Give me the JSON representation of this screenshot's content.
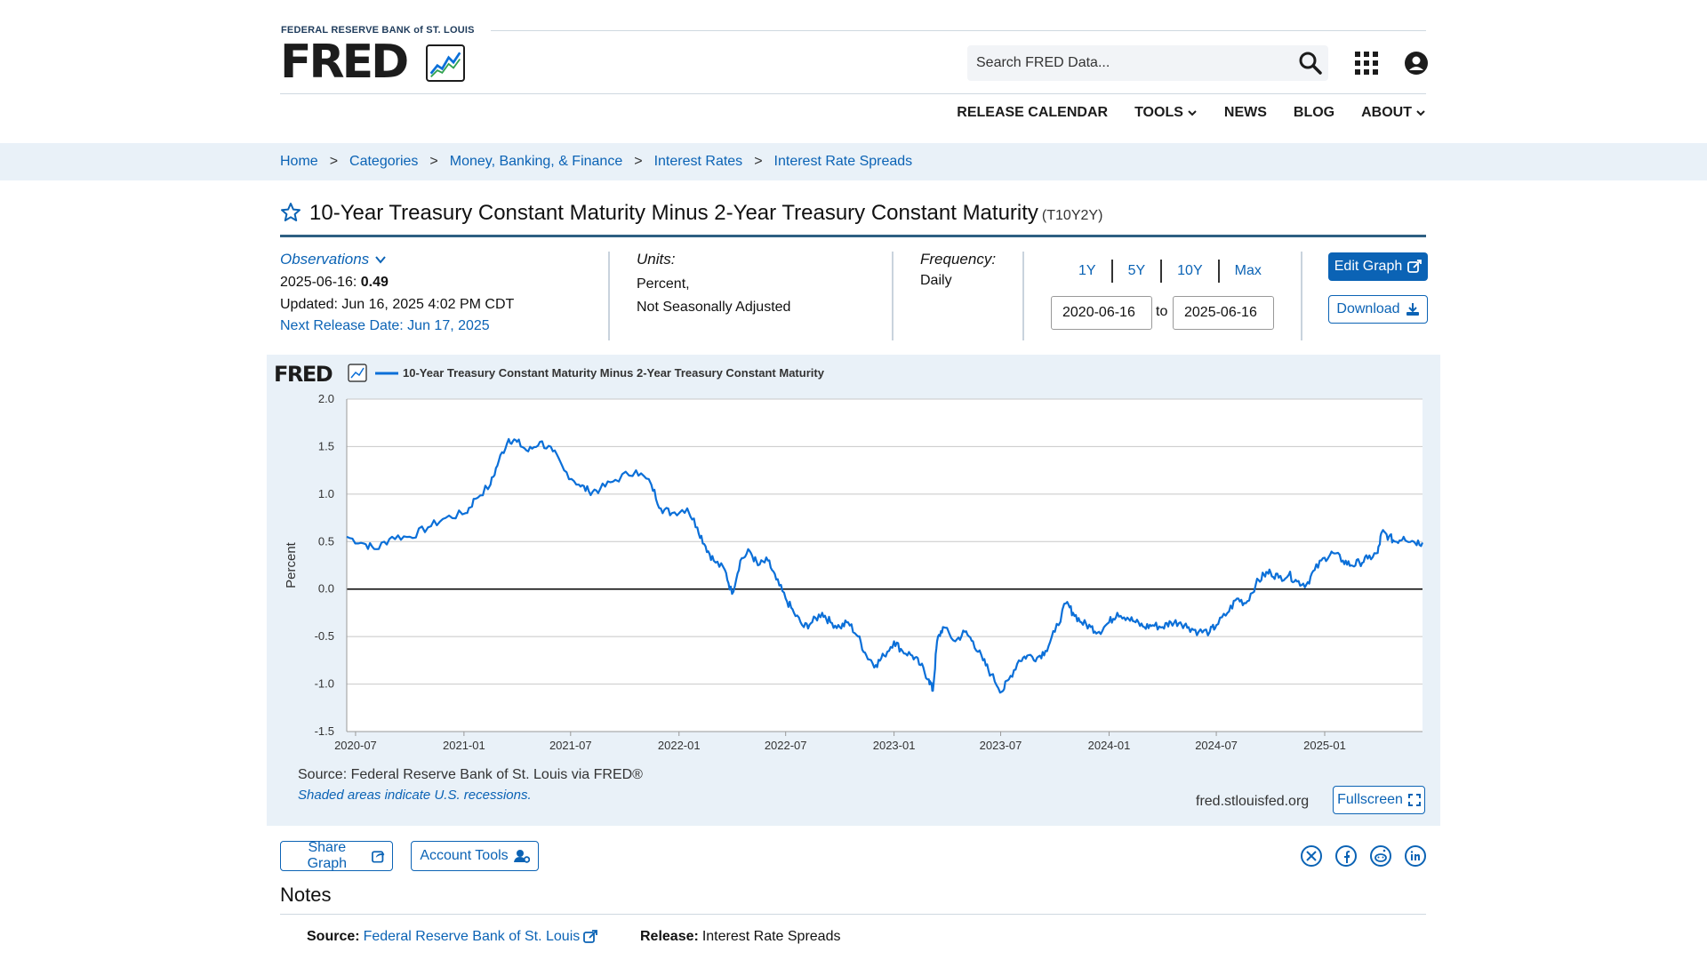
{
  "header": {
    "org_name": "FEDERAL RESERVE BANK of ST. LOUIS",
    "brand": "FRED",
    "search_placeholder": "Search FRED Data...",
    "nav": [
      {
        "label": "RELEASE CALENDAR"
      },
      {
        "label": "TOOLS"
      },
      {
        "label": "NEWS"
      },
      {
        "label": "BLOG"
      },
      {
        "label": "ABOUT"
      }
    ]
  },
  "breadcrumb": [
    "Home",
    "Categories",
    "Money, Banking, & Finance",
    "Interest Rates",
    "Interest Rate Spreads"
  ],
  "breadcrumb_sep": ">",
  "series": {
    "title": "10-Year Treasury Constant Maturity Minus 2-Year Treasury Constant Maturity",
    "id": "(T10Y2Y)"
  },
  "meta": {
    "observations_label": "Observations",
    "obs_date": "2025-06-16:",
    "obs_value": "0.49",
    "updated": "Updated: Jun 16, 2025 4:02 PM CDT",
    "next_release": "Next Release Date: Jun 17, 2025",
    "units_label": "Units:",
    "units_line1": "Percent,",
    "units_line2": "Not Seasonally Adjusted",
    "frequency_label": "Frequency:",
    "frequency": "Daily",
    "ranges": [
      "1Y",
      "5Y",
      "10Y",
      "Max"
    ],
    "date_from": "2020-06-16",
    "date_to_label": "to",
    "date_to": "2025-06-16",
    "edit_graph": "Edit Graph",
    "download": "Download"
  },
  "graph": {
    "source": "Source: Federal Reserve Bank of St. Louis via FRED®",
    "recession_note": "Shaded areas indicate U.S. recessions.",
    "site": "fred.stlouisfed.org",
    "fullscreen": "Fullscreen",
    "logo": "FRED"
  },
  "chart_data": {
    "type": "line",
    "legend_position": "top-left",
    "grid": true,
    "ylabel": "Percent",
    "ylim": [
      -1.5,
      2.0
    ],
    "yticks": [
      "2.0",
      "1.5",
      "1.0",
      "0.5",
      "0.0",
      "-0.5",
      "-1.0",
      "-1.5"
    ],
    "xlim": [
      "2020-06-16",
      "2025-06-16"
    ],
    "xticks": [
      "2020-07",
      "2021-01",
      "2021-07",
      "2022-01",
      "2022-07",
      "2023-01",
      "2023-07",
      "2024-01",
      "2024-07",
      "2025-01"
    ],
    "series": [
      {
        "name": "10-Year Treasury Constant Maturity Minus 2-Year Treasury Constant Maturity",
        "color": "#0b6fd8",
        "points": [
          [
            "2020-06-16",
            0.55
          ],
          [
            "2020-07-15",
            0.48
          ],
          [
            "2020-08-05",
            0.42
          ],
          [
            "2020-09-01",
            0.55
          ],
          [
            "2020-10-01",
            0.55
          ],
          [
            "2020-11-01",
            0.65
          ],
          [
            "2020-12-01",
            0.75
          ],
          [
            "2021-01-04",
            0.8
          ],
          [
            "2021-01-20",
            0.95
          ],
          [
            "2021-02-15",
            1.1
          ],
          [
            "2021-03-01",
            1.35
          ],
          [
            "2021-03-18",
            1.58
          ],
          [
            "2021-04-01",
            1.55
          ],
          [
            "2021-04-20",
            1.45
          ],
          [
            "2021-05-10",
            1.55
          ],
          [
            "2021-06-01",
            1.45
          ],
          [
            "2021-06-20",
            1.25
          ],
          [
            "2021-07-15",
            1.1
          ],
          [
            "2021-08-01",
            1.03
          ],
          [
            "2021-08-20",
            1.05
          ],
          [
            "2021-09-15",
            1.15
          ],
          [
            "2021-10-20",
            1.25
          ],
          [
            "2021-11-15",
            1.1
          ],
          [
            "2021-12-01",
            0.85
          ],
          [
            "2021-12-20",
            0.8
          ],
          [
            "2022-01-15",
            0.85
          ],
          [
            "2022-02-01",
            0.65
          ],
          [
            "2022-02-15",
            0.45
          ],
          [
            "2022-03-01",
            0.3
          ],
          [
            "2022-03-20",
            0.2
          ],
          [
            "2022-04-01",
            -0.05
          ],
          [
            "2022-04-15",
            0.3
          ],
          [
            "2022-05-01",
            0.4
          ],
          [
            "2022-05-15",
            0.25
          ],
          [
            "2022-06-01",
            0.3
          ],
          [
            "2022-06-15",
            0.1
          ],
          [
            "2022-07-01",
            -0.1
          ],
          [
            "2022-07-15",
            -0.25
          ],
          [
            "2022-08-01",
            -0.4
          ],
          [
            "2022-08-15",
            -0.35
          ],
          [
            "2022-09-01",
            -0.25
          ],
          [
            "2022-09-15",
            -0.35
          ],
          [
            "2022-10-01",
            -0.4
          ],
          [
            "2022-10-15",
            -0.35
          ],
          [
            "2022-11-01",
            -0.5
          ],
          [
            "2022-11-15",
            -0.7
          ],
          [
            "2022-12-01",
            -0.8
          ],
          [
            "2022-12-15",
            -0.7
          ],
          [
            "2023-01-01",
            -0.55
          ],
          [
            "2023-01-15",
            -0.65
          ],
          [
            "2023-02-01",
            -0.7
          ],
          [
            "2023-02-15",
            -0.8
          ],
          [
            "2023-03-01",
            -0.95
          ],
          [
            "2023-03-08",
            -1.07
          ],
          [
            "2023-03-15",
            -0.55
          ],
          [
            "2023-03-25",
            -0.4
          ],
          [
            "2023-04-15",
            -0.55
          ],
          [
            "2023-05-01",
            -0.45
          ],
          [
            "2023-05-15",
            -0.55
          ],
          [
            "2023-06-01",
            -0.75
          ],
          [
            "2023-06-15",
            -0.9
          ],
          [
            "2023-07-03",
            -1.08
          ],
          [
            "2023-07-15",
            -0.95
          ],
          [
            "2023-08-01",
            -0.75
          ],
          [
            "2023-08-15",
            -0.7
          ],
          [
            "2023-09-01",
            -0.72
          ],
          [
            "2023-09-15",
            -0.65
          ],
          [
            "2023-10-01",
            -0.45
          ],
          [
            "2023-10-20",
            -0.15
          ],
          [
            "2023-11-01",
            -0.25
          ],
          [
            "2023-11-15",
            -0.35
          ],
          [
            "2023-12-01",
            -0.4
          ],
          [
            "2023-12-15",
            -0.45
          ],
          [
            "2024-01-01",
            -0.35
          ],
          [
            "2024-01-15",
            -0.25
          ],
          [
            "2024-02-01",
            -0.3
          ],
          [
            "2024-02-15",
            -0.35
          ],
          [
            "2024-03-01",
            -0.4
          ],
          [
            "2024-03-15",
            -0.38
          ],
          [
            "2024-04-01",
            -0.4
          ],
          [
            "2024-04-15",
            -0.35
          ],
          [
            "2024-05-01",
            -0.35
          ],
          [
            "2024-05-15",
            -0.4
          ],
          [
            "2024-06-01",
            -0.45
          ],
          [
            "2024-06-20",
            -0.45
          ],
          [
            "2024-07-01",
            -0.38
          ],
          [
            "2024-07-20",
            -0.25
          ],
          [
            "2024-08-05",
            -0.1
          ],
          [
            "2024-08-20",
            -0.15
          ],
          [
            "2024-09-06",
            0.05
          ],
          [
            "2024-09-20",
            0.15
          ],
          [
            "2024-10-01",
            0.18
          ],
          [
            "2024-10-15",
            0.12
          ],
          [
            "2024-11-01",
            0.15
          ],
          [
            "2024-11-15",
            0.08
          ],
          [
            "2024-12-01",
            0.05
          ],
          [
            "2024-12-15",
            0.2
          ],
          [
            "2025-01-01",
            0.33
          ],
          [
            "2025-01-15",
            0.38
          ],
          [
            "2025-02-01",
            0.3
          ],
          [
            "2025-02-15",
            0.25
          ],
          [
            "2025-03-01",
            0.28
          ],
          [
            "2025-03-15",
            0.32
          ],
          [
            "2025-04-01",
            0.38
          ],
          [
            "2025-04-08",
            0.6
          ],
          [
            "2025-04-20",
            0.55
          ],
          [
            "2025-05-01",
            0.5
          ],
          [
            "2025-05-15",
            0.55
          ],
          [
            "2025-06-01",
            0.5
          ],
          [
            "2025-06-16",
            0.49
          ]
        ]
      }
    ]
  },
  "bottom": {
    "share_graph": "Share Graph",
    "account_tools": "Account Tools",
    "notes_title": "Notes",
    "source_label": "Source:",
    "source_value": "Federal Reserve Bank of St. Louis",
    "release_label": "Release:",
    "release_value": "Interest Rate Spreads"
  }
}
